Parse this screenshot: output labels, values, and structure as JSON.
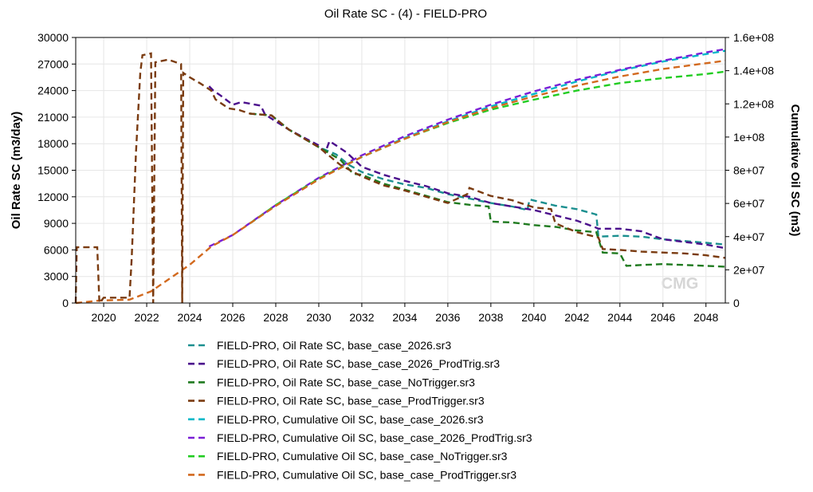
{
  "chart_data": {
    "type": "line",
    "title": "Oil Rate SC - (4) - FIELD-PRO",
    "ylabel": "Oil Rate SC (m3/day)",
    "y2label": "Cumulative Oil SC (m3)",
    "xlim": [
      2018.7,
      2048.9
    ],
    "ylim": [
      0,
      30000
    ],
    "y2lim": [
      0,
      160000000
    ],
    "x_ticks": [
      "2020",
      "2022",
      "2024",
      "2026",
      "2028",
      "2030",
      "2032",
      "2034",
      "2036",
      "2038",
      "2040",
      "2042",
      "2044",
      "2046",
      "2048"
    ],
    "y_ticks": [
      "0",
      "3000",
      "6000",
      "9000",
      "12000",
      "15000",
      "18000",
      "21000",
      "24000",
      "27000",
      "30000"
    ],
    "y2_ticks": [
      "0",
      "2e+07",
      "4e+07",
      "6e+07",
      "8e+07",
      "1e+08",
      "1.2e+08",
      "1.4e+08",
      "1.6e+08"
    ],
    "grid": true,
    "legend_position": "bottom",
    "watermark": "CMG",
    "series": [
      {
        "name": "FIELD-PRO, Oil Rate SC, base_case_2026.sr3",
        "axis": "left",
        "color": "#1b8f8f",
        "points": [
          [
            2026.8,
            21400
          ],
          [
            2027.8,
            21200
          ],
          [
            2028.6,
            19600
          ],
          [
            2030.0,
            17600
          ],
          [
            2030.8,
            16800
          ],
          [
            2031.4,
            15600
          ],
          [
            2032.0,
            14800
          ],
          [
            2033.0,
            14000
          ],
          [
            2034.0,
            13400
          ],
          [
            2035.0,
            13000
          ],
          [
            2036.0,
            12300
          ],
          [
            2037.0,
            11800
          ],
          [
            2038.0,
            11300
          ],
          [
            2039.0,
            10900
          ],
          [
            2039.7,
            10500
          ],
          [
            2039.8,
            11700
          ],
          [
            2041.0,
            11000
          ],
          [
            2042.0,
            10600
          ],
          [
            2042.9,
            10000
          ],
          [
            2043.0,
            7500
          ],
          [
            2044.0,
            7600
          ],
          [
            2045.0,
            7500
          ],
          [
            2046.0,
            7200
          ],
          [
            2047.0,
            7000
          ],
          [
            2048.0,
            6800
          ],
          [
            2048.9,
            6600
          ]
        ]
      },
      {
        "name": "FIELD-PRO, Oil Rate SC, base_case_2026_ProdTrig.sr3",
        "axis": "left",
        "color": "#4b0f8c",
        "points": [
          [
            2024.9,
            24500
          ],
          [
            2025.1,
            24000
          ],
          [
            2025.4,
            23500
          ],
          [
            2026.0,
            22400
          ],
          [
            2026.4,
            22700
          ],
          [
            2027.3,
            22300
          ],
          [
            2027.5,
            21300
          ],
          [
            2028.6,
            19600
          ],
          [
            2030.0,
            17800
          ],
          [
            2030.3,
            17000
          ],
          [
            2030.5,
            18300
          ],
          [
            2031.3,
            17000
          ],
          [
            2032.0,
            15400
          ],
          [
            2033.0,
            14500
          ],
          [
            2034.0,
            13800
          ],
          [
            2035.0,
            13200
          ],
          [
            2036.0,
            12400
          ],
          [
            2037.0,
            12000
          ],
          [
            2038.0,
            11300
          ],
          [
            2039.0,
            10900
          ],
          [
            2040.0,
            10500
          ],
          [
            2041.0,
            9900
          ],
          [
            2042.0,
            9300
          ],
          [
            2042.8,
            8600
          ],
          [
            2043.0,
            8400
          ],
          [
            2044.0,
            8400
          ],
          [
            2045.0,
            8100
          ],
          [
            2046.0,
            7200
          ],
          [
            2047.0,
            6900
          ],
          [
            2048.0,
            6600
          ],
          [
            2048.9,
            6200
          ]
        ]
      },
      {
        "name": "FIELD-PRO, Oil Rate SC, base_case_NoTrigger.sr3",
        "axis": "left",
        "color": "#1f7a1f",
        "points": [
          [
            2026.8,
            21400
          ],
          [
            2027.8,
            21200
          ],
          [
            2028.6,
            19600
          ],
          [
            2030.0,
            17600
          ],
          [
            2031.0,
            16200
          ],
          [
            2031.6,
            14600
          ],
          [
            2032.0,
            14500
          ],
          [
            2033.0,
            13500
          ],
          [
            2034.0,
            12800
          ],
          [
            2035.0,
            12100
          ],
          [
            2036.0,
            11400
          ],
          [
            2037.0,
            11100
          ],
          [
            2037.9,
            10900
          ],
          [
            2038.0,
            9200
          ],
          [
            2039.0,
            9100
          ],
          [
            2040.0,
            8800
          ],
          [
            2041.0,
            8600
          ],
          [
            2042.0,
            8200
          ],
          [
            2042.9,
            8000
          ],
          [
            2043.2,
            5700
          ],
          [
            2044.0,
            5600
          ],
          [
            2044.3,
            4200
          ],
          [
            2045.0,
            4300
          ],
          [
            2046.0,
            4400
          ],
          [
            2047.0,
            4300
          ],
          [
            2048.0,
            4200
          ],
          [
            2048.9,
            4100
          ]
        ]
      },
      {
        "name": "FIELD-PRO, Oil Rate SC, base_case_ProdTrigger.sr3",
        "axis": "left",
        "color": "#7a3b10",
        "points": [
          [
            2018.7,
            0
          ],
          [
            2018.75,
            6300
          ],
          [
            2019.7,
            6300
          ],
          [
            2019.8,
            0
          ],
          [
            2020.0,
            600
          ],
          [
            2021.2,
            600
          ],
          [
            2021.3,
            5000
          ],
          [
            2021.5,
            17000
          ],
          [
            2021.7,
            26000
          ],
          [
            2021.8,
            28000
          ],
          [
            2022.2,
            28200
          ],
          [
            2022.3,
            0
          ],
          [
            2022.4,
            27200
          ],
          [
            2023.0,
            27500
          ],
          [
            2023.6,
            27000
          ],
          [
            2023.65,
            0
          ],
          [
            2023.7,
            26000
          ],
          [
            2024.0,
            25500
          ],
          [
            2024.5,
            24800
          ],
          [
            2025.0,
            24000
          ],
          [
            2025.2,
            23000
          ],
          [
            2025.8,
            22000
          ],
          [
            2026.3,
            21800
          ],
          [
            2026.8,
            21400
          ],
          [
            2027.8,
            21200
          ],
          [
            2028.6,
            19600
          ],
          [
            2030.0,
            17600
          ],
          [
            2031.0,
            15600
          ],
          [
            2032.0,
            14300
          ],
          [
            2033.0,
            13300
          ],
          [
            2034.0,
            12700
          ],
          [
            2035.0,
            12000
          ],
          [
            2036.0,
            11300
          ],
          [
            2036.9,
            12300
          ],
          [
            2037.0,
            13000
          ],
          [
            2038.0,
            12100
          ],
          [
            2039.0,
            11600
          ],
          [
            2040.0,
            10800
          ],
          [
            2040.8,
            10600
          ],
          [
            2041.0,
            9000
          ],
          [
            2042.0,
            8000
          ],
          [
            2043.0,
            7400
          ],
          [
            2043.2,
            6100
          ],
          [
            2044.0,
            6000
          ],
          [
            2045.0,
            5800
          ],
          [
            2046.0,
            5700
          ],
          [
            2047.0,
            5600
          ],
          [
            2048.0,
            5400
          ],
          [
            2048.9,
            5100
          ]
        ]
      },
      {
        "name": "FIELD-PRO,  Cumulative  Oil  SC,  base_case_2026.sr3",
        "axis": "right",
        "color": "#00b8c8",
        "points": [
          [
            2026.8,
            48000000
          ],
          [
            2028,
            59000000
          ],
          [
            2030,
            75000000
          ],
          [
            2032,
            88000000
          ],
          [
            2034,
            99500000
          ],
          [
            2036,
            109500000
          ],
          [
            2038,
            118500000
          ],
          [
            2040,
            126000000
          ],
          [
            2042,
            133500000
          ],
          [
            2044,
            140000000
          ],
          [
            2046,
            145500000
          ],
          [
            2048,
            150000000
          ],
          [
            2048.9,
            152000000
          ]
        ]
      },
      {
        "name": "FIELD-PRO,  Cumulative  Oil  SC,  base_case_2026_ProdTrig.sr3",
        "axis": "right",
        "color": "#7a1fd6",
        "points": [
          [
            2024.9,
            34000000
          ],
          [
            2026,
            41000000
          ],
          [
            2028,
            59000000
          ],
          [
            2030,
            75500000
          ],
          [
            2032,
            89000000
          ],
          [
            2034,
            100500000
          ],
          [
            2036,
            110500000
          ],
          [
            2038,
            119500000
          ],
          [
            2040,
            127500000
          ],
          [
            2042,
            134500000
          ],
          [
            2044,
            140500000
          ],
          [
            2046,
            146000000
          ],
          [
            2048,
            151000000
          ],
          [
            2048.9,
            153000000
          ]
        ]
      },
      {
        "name": "FIELD-PRO,  Cumulative  Oil  SC,  base_case_NoTrigger.sr3",
        "axis": "right",
        "color": "#22cc22",
        "points": [
          [
            2026.8,
            48000000
          ],
          [
            2028,
            59000000
          ],
          [
            2030,
            75000000
          ],
          [
            2032,
            88000000
          ],
          [
            2034,
            99000000
          ],
          [
            2036,
            108500000
          ],
          [
            2038,
            116500000
          ],
          [
            2040,
            122500000
          ],
          [
            2042,
            128000000
          ],
          [
            2044,
            132500000
          ],
          [
            2046,
            135500000
          ],
          [
            2048,
            138000000
          ],
          [
            2048.9,
            139500000
          ]
        ]
      },
      {
        "name": "FIELD-PRO,  Cumulative  Oil  SC,  base_case_ProdTrigger.sr3",
        "axis": "right",
        "color": "#d2691e",
        "points": [
          [
            2018.7,
            0
          ],
          [
            2019.8,
            1500000
          ],
          [
            2021.2,
            2000000
          ],
          [
            2022.2,
            7000000
          ],
          [
            2024.0,
            23000000
          ],
          [
            2025,
            34000000
          ],
          [
            2026,
            41000000
          ],
          [
            2028,
            58500000
          ],
          [
            2030,
            74500000
          ],
          [
            2032,
            88000000
          ],
          [
            2034,
            99000000
          ],
          [
            2036,
            109000000
          ],
          [
            2038,
            117500000
          ],
          [
            2040,
            124500000
          ],
          [
            2042,
            131000000
          ],
          [
            2044,
            136500000
          ],
          [
            2046,
            141000000
          ],
          [
            2048,
            144500000
          ],
          [
            2048.9,
            146000000
          ]
        ]
      }
    ]
  }
}
